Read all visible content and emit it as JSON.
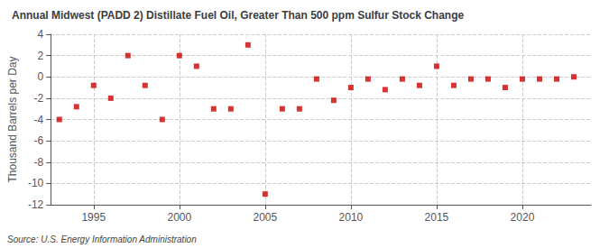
{
  "chart_data": {
    "type": "scatter",
    "title": "Annual Midwest (PADD 2) Distillate Fuel Oil, Greater Than 500 ppm Sulfur Stock Change",
    "ylabel": "Thousand Barrels per Day",
    "source": "Source: U.S. Energy Information Administration",
    "x": [
      1993,
      1994,
      1995,
      1996,
      1997,
      1998,
      1999,
      2000,
      2001,
      2002,
      2003,
      2004,
      2005,
      2006,
      2007,
      2008,
      2009,
      2010,
      2011,
      2012,
      2013,
      2014,
      2015,
      2016,
      2017,
      2018,
      2019,
      2020,
      2021,
      2022,
      2023
    ],
    "values": [
      -4.0,
      -2.8,
      -0.8,
      -2.0,
      2.0,
      -0.8,
      -4.0,
      2.0,
      1.0,
      -3.0,
      -3.0,
      3.0,
      -11.0,
      -3.0,
      -3.0,
      -0.2,
      -2.2,
      -1.0,
      -0.2,
      -1.2,
      -0.2,
      -0.8,
      1.0,
      -0.8,
      -0.2,
      -0.2,
      -1.0,
      -0.2,
      -0.2,
      -0.2,
      0.0
    ],
    "color": "#cc0000",
    "marker": "square",
    "xlim": [
      1992.5,
      2024
    ],
    "xticks": [
      1995,
      2000,
      2005,
      2010,
      2015,
      2020
    ],
    "ylim": [
      -12,
      4
    ],
    "yticks": [
      4,
      2,
      0,
      -2,
      -4,
      -6,
      -8,
      -10,
      -12
    ],
    "grid": true
  }
}
